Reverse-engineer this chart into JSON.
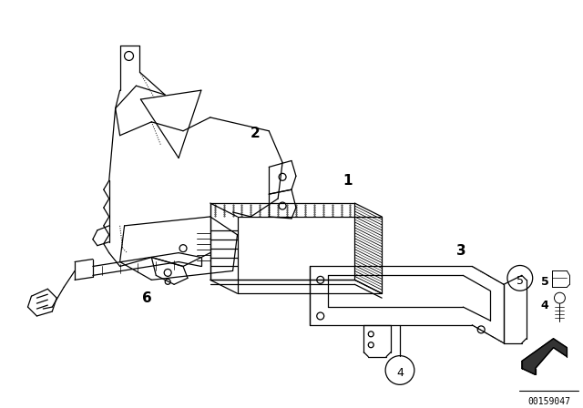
{
  "bg_color": "#ffffff",
  "line_color": "#000000",
  "fig_width": 6.4,
  "fig_height": 4.48,
  "dpi": 100,
  "catalog_number": "00159047",
  "lw": 0.9
}
